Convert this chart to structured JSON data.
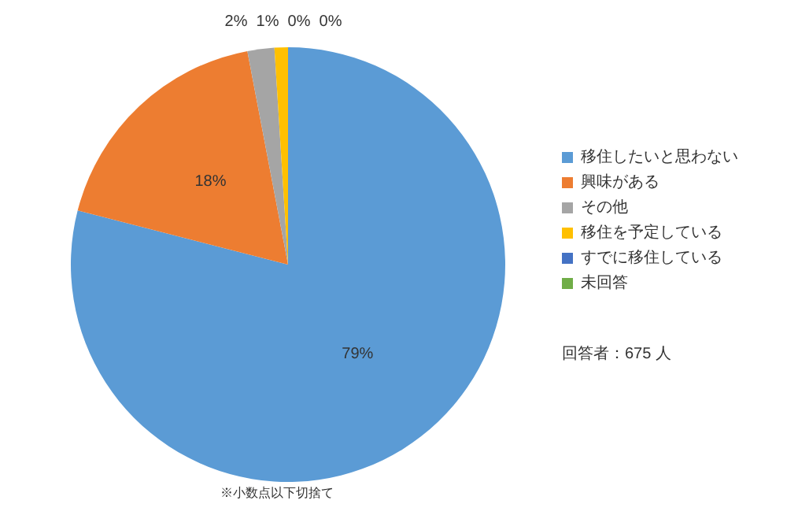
{
  "chart_data": {
    "type": "pie",
    "categories": [
      "移住したいと思わない",
      "興味がある",
      "その他",
      "移住を予定している",
      "すでに移住している",
      "未回答"
    ],
    "values": [
      79,
      18,
      2,
      1,
      0,
      0
    ],
    "value_labels": [
      "79%",
      "18%",
      "2%",
      "1%",
      "0%",
      "0%"
    ],
    "colors": [
      "#5b9bd5",
      "#ed7d31",
      "#a5a5a5",
      "#ffc000",
      "#4472c4",
      "#70ad47"
    ],
    "legend": "right",
    "annotations": [
      "回答者：675 人",
      "※小数点以下切捨て"
    ]
  }
}
